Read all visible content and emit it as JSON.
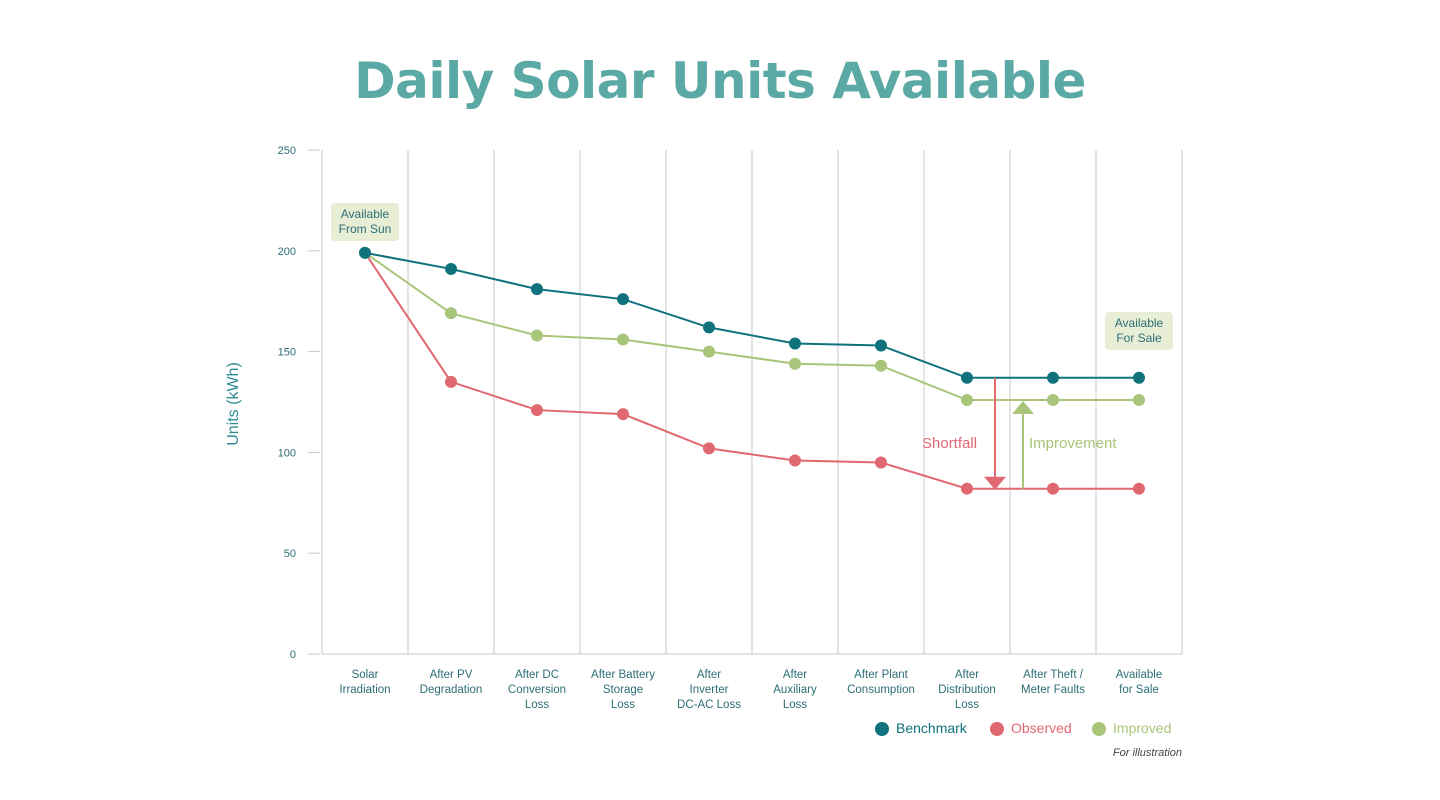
{
  "title": "Daily Solar Units Available",
  "chart_data": {
    "type": "line",
    "title": "Daily Solar Units Available",
    "xlabel": "",
    "ylabel": "Units (kWh)",
    "ylim": [
      0,
      250
    ],
    "yticks": [
      "0",
      "50",
      "100",
      "150",
      "200",
      "250"
    ],
    "ytick_values": [
      0,
      50,
      100,
      150,
      200,
      250
    ],
    "grid": "vertical",
    "categories": [
      [
        "Solar",
        "Irradiation"
      ],
      [
        "After PV",
        "Degradation"
      ],
      [
        "After DC",
        "Conversion",
        "Loss"
      ],
      [
        "After Battery",
        "Storage",
        "Loss"
      ],
      [
        "After",
        "Inverter",
        "DC-AC Loss"
      ],
      [
        "After",
        "Auxiliary",
        "Loss"
      ],
      [
        "After Plant",
        "Consumption"
      ],
      [
        "After",
        "Distribution",
        "Loss"
      ],
      [
        "After Theft /",
        "Meter Faults"
      ],
      [
        "Available",
        "for Sale"
      ]
    ],
    "series": [
      {
        "name": "Benchmark",
        "color": "#0f727c",
        "values": [
          199,
          191,
          181,
          176,
          162,
          154,
          153,
          137,
          137,
          137
        ]
      },
      {
        "name": "Observed",
        "color": "#e06871",
        "values": [
          199,
          135,
          121,
          119,
          102,
          96,
          95,
          82,
          82,
          82
        ]
      },
      {
        "name": "Improved",
        "color": "#a9c57a",
        "values": [
          199,
          169,
          158,
          156,
          150,
          144,
          143,
          126,
          126,
          126
        ]
      }
    ],
    "callouts": [
      {
        "lines": [
          "Available",
          "From Sun"
        ],
        "category_index": 0
      },
      {
        "lines": [
          "Available",
          "For Sale"
        ],
        "category_index": 9
      }
    ],
    "annotations": {
      "shortfall": {
        "label": "Shortfall",
        "color": "#e06871",
        "from": 137,
        "to": 82
      },
      "improvement": {
        "label": "Improvement",
        "color": "#a9c57a",
        "from": 82,
        "to": 126
      }
    },
    "legend_position": "bottom-right",
    "note": "For illustration"
  },
  "colors": {
    "title": "#5ba9a4",
    "axis_text": "#2c6f75",
    "grid": "#c8c8c8",
    "callout_bg": "#e8edd6"
  }
}
